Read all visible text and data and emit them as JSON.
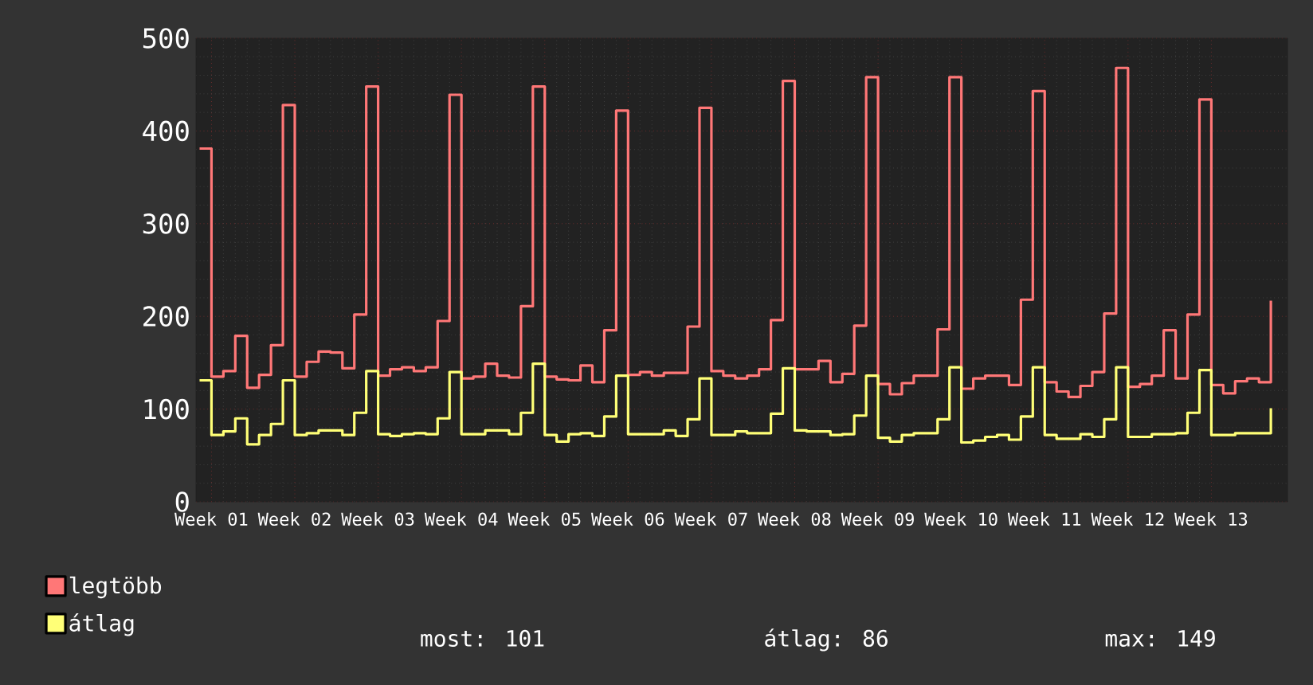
{
  "chart_data": {
    "type": "step",
    "categories": [
      null,
      "Week 01",
      null,
      null,
      null,
      null,
      null,
      null,
      "Week 02",
      null,
      null,
      null,
      null,
      null,
      null,
      "Week 03",
      null,
      null,
      null,
      null,
      null,
      null,
      "Week 04",
      null,
      null,
      null,
      null,
      null,
      null,
      "Week 05",
      null,
      null,
      null,
      null,
      null,
      null,
      "Week 06",
      null,
      null,
      null,
      null,
      null,
      null,
      "Week 07",
      null,
      null,
      null,
      null,
      null,
      null,
      "Week 08",
      null,
      null,
      null,
      null,
      null,
      null,
      "Week 09",
      null,
      null,
      null,
      null,
      null,
      null,
      "Week 10",
      null,
      null,
      null,
      null,
      null,
      null,
      "Week 11",
      null,
      null,
      null,
      null,
      null,
      null,
      "Week 12",
      null,
      null,
      null,
      null,
      null,
      null,
      "Week 13",
      null,
      null,
      null,
      null,
      null
    ],
    "series": [
      {
        "name": "legtöbb",
        "color": "#ff7777",
        "values": [
          381,
          135,
          141,
          179,
          123,
          137,
          169,
          428,
          135,
          151,
          162,
          161,
          144,
          202,
          448,
          136,
          143,
          145,
          141,
          145,
          195,
          439,
          133,
          135,
          149,
          136,
          134,
          211,
          448,
          135,
          132,
          131,
          147,
          129,
          185,
          422,
          137,
          140,
          136,
          139,
          139,
          189,
          425,
          141,
          136,
          133,
          136,
          143,
          196,
          454,
          143,
          143,
          152,
          129,
          138,
          190,
          458,
          127,
          116,
          128,
          136,
          136,
          186,
          458,
          122,
          133,
          136,
          136,
          126,
          218,
          443,
          129,
          119,
          113,
          125,
          140,
          203,
          468,
          124,
          127,
          136,
          185,
          133,
          202,
          434,
          126,
          117,
          130,
          133,
          129,
          217
        ]
      },
      {
        "name": "átlag",
        "color": "#ffff77",
        "values": [
          131,
          72,
          76,
          90,
          62,
          72,
          84,
          131,
          72,
          74,
          77,
          77,
          72,
          96,
          141,
          73,
          71,
          73,
          74,
          73,
          90,
          140,
          73,
          73,
          77,
          77,
          73,
          96,
          149,
          72,
          65,
          73,
          74,
          71,
          92,
          136,
          73,
          73,
          73,
          77,
          71,
          89,
          133,
          72,
          72,
          76,
          74,
          74,
          95,
          144,
          77,
          76,
          76,
          72,
          73,
          93,
          136,
          69,
          65,
          72,
          74,
          74,
          89,
          145,
          64,
          66,
          70,
          72,
          67,
          92,
          145,
          72,
          68,
          68,
          73,
          70,
          89,
          145,
          70,
          70,
          73,
          73,
          74,
          96,
          142,
          72,
          72,
          74,
          74,
          74,
          101
        ]
      }
    ],
    "ylim": [
      0,
      500
    ],
    "yticks": [
      0,
      100,
      200,
      300,
      400,
      500
    ],
    "grid": true,
    "legend": "bottom",
    "marker": "none",
    "line_style": "solid",
    "annotations": [
      "most: 101",
      "átlag: 86",
      "max: 149"
    ]
  }
}
